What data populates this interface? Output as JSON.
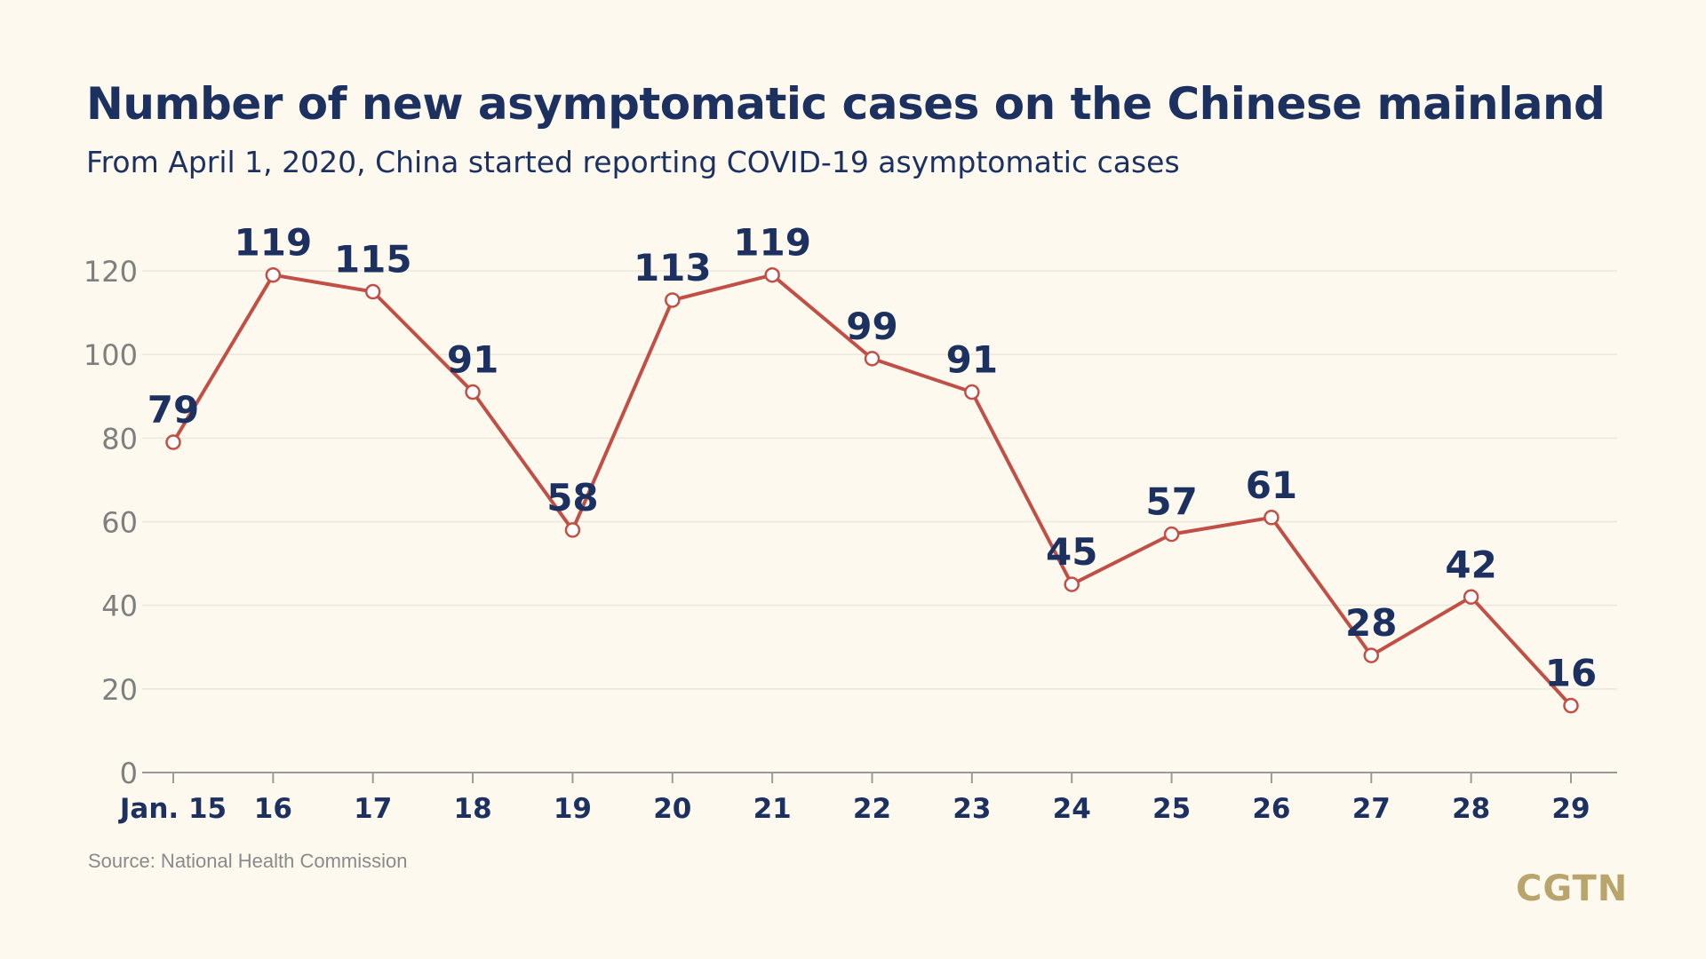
{
  "title": "Number of new asymptomatic cases on the Chinese mainland",
  "subtitle": "From April 1, 2020, China started reporting COVID-19 asymptomatic cases",
  "source": "Source: National Health Commission",
  "brand": "CGTN",
  "colors": {
    "background": "#FDF9EF",
    "title": "#1D3160",
    "line": "#C24F45",
    "marker_fill": "#FFFFFF",
    "axis_text": "#7F7F7F",
    "grid": "#EDE8DB",
    "brand": "#B9A46B"
  },
  "chart_data": {
    "type": "line",
    "title": "Number of new asymptomatic cases on the Chinese mainland",
    "subtitle": "From April 1, 2020, China started reporting COVID-19 asymptomatic cases",
    "categories": [
      "Jan. 15",
      "16",
      "17",
      "18",
      "19",
      "20",
      "21",
      "22",
      "23",
      "24",
      "25",
      "26",
      "27",
      "28",
      "29"
    ],
    "values": [
      79,
      119,
      115,
      91,
      58,
      113,
      119,
      99,
      91,
      45,
      57,
      61,
      28,
      42,
      16
    ],
    "ylim": [
      0,
      120
    ],
    "yticks": [
      0,
      20,
      40,
      60,
      80,
      100,
      120
    ],
    "grid": true,
    "legend": "none",
    "xlabel": "",
    "ylabel": ""
  }
}
